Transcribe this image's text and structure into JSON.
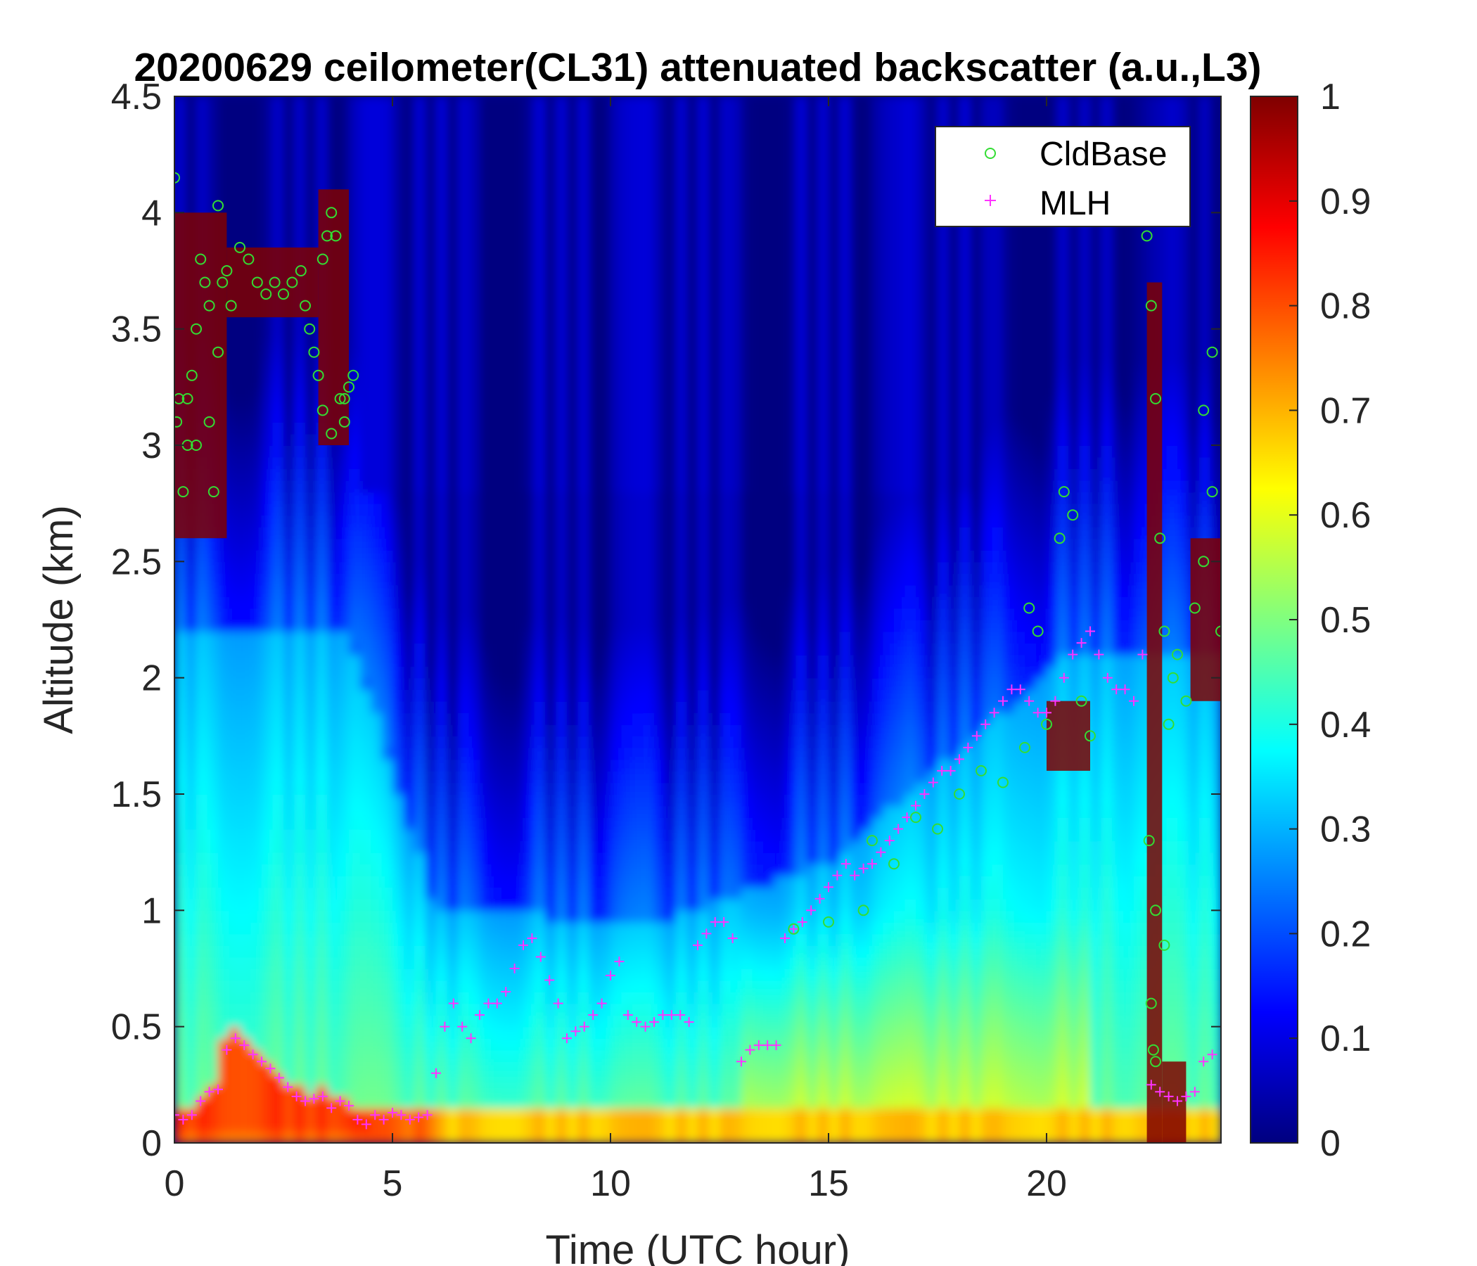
{
  "chart_data": {
    "type": "heatmap",
    "title": "20200629 ceilometer(CL31) attenuated backscatter (a.u.,L3)",
    "xlabel": "Time (UTC hour)",
    "ylabel": "Altitude (km)",
    "xlim": [
      0,
      24
    ],
    "ylim": [
      0,
      4.5
    ],
    "x_ticks": [
      "0",
      "5",
      "10",
      "15",
      "20"
    ],
    "x_tick_values": [
      0,
      5,
      10,
      15,
      20
    ],
    "y_ticks": [
      "0",
      "0.5",
      "1",
      "1.5",
      "2",
      "2.5",
      "3",
      "3.5",
      "4",
      "4.5"
    ],
    "y_tick_values": [
      0,
      0.5,
      1,
      1.5,
      2,
      2.5,
      3,
      3.5,
      4,
      4.5
    ],
    "colormap": "jet",
    "clim": [
      0,
      1
    ],
    "colorbar_ticks": [
      "0",
      "0.1",
      "0.2",
      "0.3",
      "0.4",
      "0.5",
      "0.6",
      "0.7",
      "0.8",
      "0.9",
      "1"
    ],
    "colorbar_tick_values": [
      0,
      0.1,
      0.2,
      0.3,
      0.4,
      0.5,
      0.6,
      0.7,
      0.8,
      0.9,
      1
    ],
    "legend_position": "top-right",
    "colors": {
      "cldbase": "#33dd33",
      "mlh": "#ff33ff"
    },
    "series": [
      {
        "name": "CldBase",
        "marker": "circle",
        "x": [
          0.0,
          0.05,
          0.1,
          0.2,
          0.3,
          0.4,
          0.5,
          0.6,
          0.7,
          0.8,
          0.9,
          1.0,
          1.1,
          1.2,
          1.3,
          1.5,
          1.7,
          1.9,
          2.1,
          2.3,
          2.5,
          2.7,
          2.9,
          3.0,
          3.1,
          3.2,
          3.3,
          3.4,
          3.5,
          3.6,
          3.7,
          3.8,
          3.9,
          4.0,
          4.1,
          0.3,
          0.5,
          0.8,
          1.0,
          3.4,
          3.6,
          3.9,
          14.2,
          15.0,
          15.8,
          16.0,
          16.5,
          17.0,
          17.5,
          18.0,
          18.5,
          19.0,
          19.5,
          20.0,
          20.3,
          20.6,
          20.8,
          21.0,
          19.6,
          19.8,
          20.4,
          22.3,
          22.4,
          22.5,
          22.6,
          22.7,
          22.8,
          22.9,
          23.0,
          23.2,
          23.4,
          23.6,
          23.8,
          24.0,
          22.35,
          22.5,
          22.7,
          23.6,
          23.8,
          22.4,
          22.45,
          22.5
        ],
        "y": [
          4.15,
          3.1,
          3.2,
          2.8,
          3.0,
          3.3,
          3.5,
          3.8,
          3.7,
          3.1,
          2.8,
          3.4,
          3.7,
          3.75,
          3.6,
          3.85,
          3.8,
          3.7,
          3.65,
          3.7,
          3.65,
          3.7,
          3.75,
          3.6,
          3.5,
          3.4,
          3.3,
          3.8,
          3.9,
          4.0,
          3.9,
          3.2,
          3.1,
          3.25,
          3.3,
          3.2,
          3.0,
          3.6,
          4.03,
          3.15,
          3.05,
          3.2,
          0.92,
          0.95,
          1.0,
          1.3,
          1.2,
          1.4,
          1.35,
          1.5,
          1.6,
          1.55,
          1.7,
          1.8,
          2.6,
          2.7,
          1.9,
          1.75,
          2.3,
          2.2,
          2.8,
          3.9,
          3.6,
          3.2,
          2.6,
          2.2,
          1.8,
          2.0,
          2.1,
          1.9,
          2.3,
          2.5,
          2.8,
          2.2,
          1.3,
          1.0,
          0.85,
          3.15,
          3.4,
          0.6,
          0.4,
          0.35
        ]
      },
      {
        "name": "MLH",
        "marker": "plus",
        "x": [
          0.0,
          0.2,
          0.4,
          0.6,
          0.8,
          1.0,
          1.2,
          1.4,
          1.6,
          1.8,
          2.0,
          2.2,
          2.4,
          2.6,
          2.8,
          3.0,
          3.2,
          3.4,
          3.6,
          3.8,
          4.0,
          4.2,
          4.4,
          4.6,
          4.8,
          5.0,
          5.2,
          5.4,
          5.6,
          5.8,
          6.0,
          6.2,
          6.4,
          6.6,
          6.8,
          7.0,
          7.2,
          7.4,
          7.6,
          7.8,
          8.0,
          8.2,
          8.4,
          8.6,
          8.8,
          9.0,
          9.2,
          9.4,
          9.6,
          9.8,
          10.0,
          10.2,
          10.4,
          10.6,
          10.8,
          11.0,
          11.2,
          11.4,
          11.6,
          11.8,
          12.0,
          12.2,
          12.4,
          12.6,
          12.8,
          13.0,
          13.2,
          13.4,
          13.6,
          13.8,
          14.0,
          14.2,
          14.4,
          14.6,
          14.8,
          15.0,
          15.2,
          15.4,
          15.6,
          15.8,
          16.0,
          16.2,
          16.4,
          16.6,
          16.8,
          17.0,
          17.2,
          17.4,
          17.6,
          17.8,
          18.0,
          18.2,
          18.4,
          18.6,
          18.8,
          19.0,
          19.2,
          19.4,
          19.6,
          19.8,
          20.0,
          20.2,
          20.4,
          20.6,
          20.8,
          21.0,
          21.2,
          21.4,
          21.6,
          21.8,
          22.0,
          22.2,
          22.4,
          22.6,
          22.8,
          23.0,
          23.2,
          23.4,
          23.6,
          23.8
        ],
        "y": [
          0.12,
          0.1,
          0.12,
          0.18,
          0.22,
          0.23,
          0.4,
          0.45,
          0.42,
          0.38,
          0.35,
          0.32,
          0.28,
          0.24,
          0.2,
          0.18,
          0.19,
          0.2,
          0.15,
          0.18,
          0.16,
          0.1,
          0.08,
          0.12,
          0.1,
          0.13,
          0.12,
          0.1,
          0.11,
          0.12,
          0.3,
          0.5,
          0.6,
          0.5,
          0.45,
          0.55,
          0.6,
          0.6,
          0.65,
          0.75,
          0.85,
          0.88,
          0.8,
          0.7,
          0.6,
          0.45,
          0.48,
          0.5,
          0.55,
          0.6,
          0.72,
          0.78,
          0.55,
          0.52,
          0.5,
          0.52,
          0.55,
          0.55,
          0.55,
          0.52,
          0.85,
          0.9,
          0.95,
          0.95,
          0.88,
          0.35,
          0.4,
          0.42,
          0.42,
          0.42,
          0.88,
          0.92,
          0.95,
          1.0,
          1.05,
          1.1,
          1.15,
          1.2,
          1.15,
          1.18,
          1.2,
          1.25,
          1.3,
          1.35,
          1.4,
          1.45,
          1.5,
          1.55,
          1.6,
          1.6,
          1.65,
          1.7,
          1.75,
          1.8,
          1.85,
          1.9,
          1.95,
          1.95,
          1.9,
          1.85,
          1.85,
          1.9,
          2.0,
          2.1,
          2.15,
          2.2,
          2.1,
          2.0,
          1.95,
          1.95,
          1.9,
          2.1,
          0.25,
          0.22,
          0.2,
          0.18,
          0.2,
          0.22,
          0.35,
          0.38
        ]
      }
    ]
  }
}
